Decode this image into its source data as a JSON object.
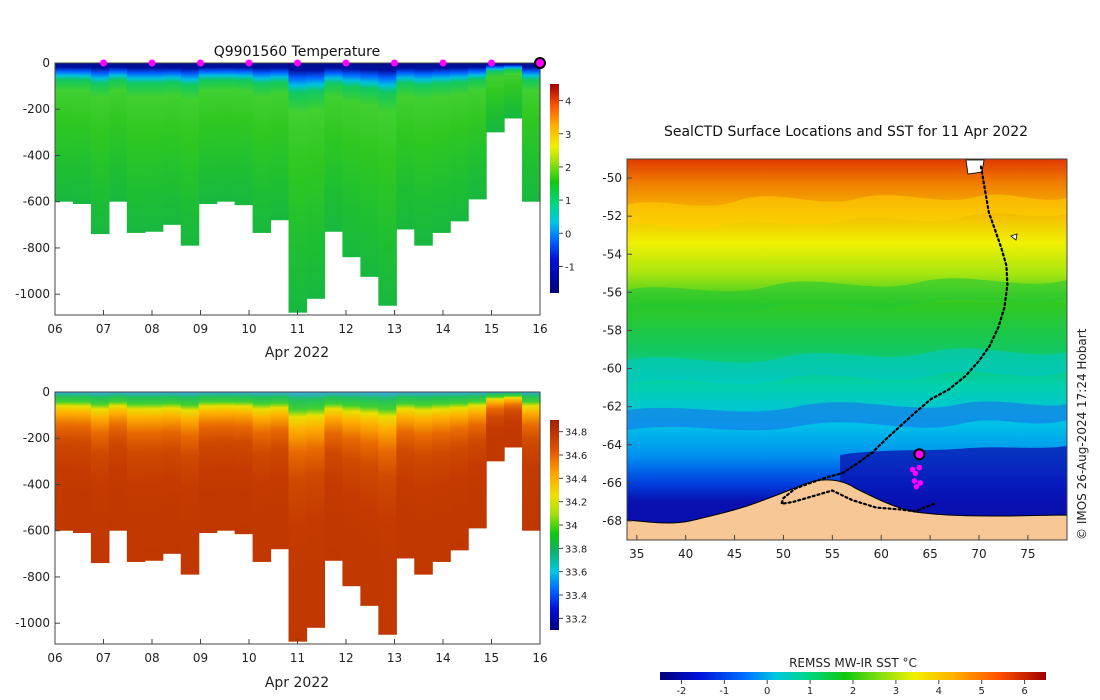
{
  "chart_data": [
    {
      "type": "heatmap",
      "title": "Q9901560  Temperature",
      "xlabel": "Apr 2022",
      "x_ticks": [
        "06",
        "07",
        "08",
        "09",
        "10",
        "11",
        "12",
        "13",
        "14",
        "15",
        "16"
      ],
      "y_ticks": [
        "0",
        "-200",
        "-400",
        "-600",
        "-800",
        "-1000"
      ],
      "xlim": [
        6,
        16
      ],
      "ylim": [
        -1090,
        0
      ],
      "colorbar": {
        "ticks": [
          "4",
          "3",
          "2",
          "1",
          "0",
          "-1"
        ],
        "range": [
          -1.8,
          4.5
        ]
      },
      "profile_markers": [
        "07",
        "08",
        "09",
        "10",
        "11",
        "12",
        "13",
        "14",
        "15"
      ],
      "latest_marker": "16",
      "marker_color": "#ff00ff",
      "profile_depths_m": [
        600,
        610,
        740,
        600,
        735,
        730,
        700,
        790,
        610,
        600,
        615,
        735,
        680,
        1080,
        1020,
        730,
        840,
        925,
        1050,
        720,
        790,
        735,
        685,
        590,
        300,
        240,
        600
      ]
    },
    {
      "type": "heatmap",
      "title": "",
      "xlabel": "Apr 2022",
      "x_ticks": [
        "06",
        "07",
        "08",
        "09",
        "10",
        "11",
        "12",
        "13",
        "14",
        "15",
        "16"
      ],
      "y_ticks": [
        "0",
        "-200",
        "-400",
        "-600",
        "-800",
        "-1000"
      ],
      "xlim": [
        6,
        16
      ],
      "ylim": [
        -1090,
        0
      ],
      "colorbar": {
        "ticks": [
          "34.8",
          "34.6",
          "34.4",
          "34.2",
          "34",
          "33.8",
          "33.6",
          "33.4",
          "33.2"
        ],
        "range": [
          33.1,
          34.9
        ]
      },
      "profile_depths_m": [
        600,
        610,
        740,
        600,
        735,
        730,
        700,
        790,
        610,
        600,
        615,
        735,
        680,
        1080,
        1020,
        730,
        840,
        925,
        1050,
        720,
        790,
        735,
        685,
        590,
        300,
        240,
        600
      ]
    },
    {
      "type": "map",
      "title": "SealCTD Surface Locations and SST for 11 Apr 2022",
      "x_ticks": [
        "35",
        "40",
        "45",
        "50",
        "55",
        "60",
        "65",
        "70",
        "75"
      ],
      "y_ticks": [
        "-50",
        "-52",
        "-54",
        "-56",
        "-58",
        "-60",
        "-62",
        "-64",
        "-66",
        "-68"
      ],
      "xlim": [
        34,
        79
      ],
      "ylim": [
        -69,
        -49
      ],
      "colorbar_label": "REMSS MW-IR SST °C",
      "colorbar_ticks": [
        "-2",
        "-1",
        "0",
        "1",
        "2",
        "3",
        "4",
        "5",
        "6"
      ],
      "colorbar_range": [
        -2.5,
        6.5
      ],
      "track": [
        [
          70.2,
          -49.4
        ],
        [
          70.6,
          -50.6
        ],
        [
          71.0,
          -51.8
        ],
        [
          71.7,
          -52.8
        ],
        [
          72.3,
          -53.7
        ],
        [
          72.8,
          -54.6
        ],
        [
          72.9,
          -55.6
        ],
        [
          72.6,
          -56.8
        ],
        [
          72.0,
          -57.8
        ],
        [
          71.1,
          -58.8
        ],
        [
          70.0,
          -59.6
        ],
        [
          68.6,
          -60.4
        ],
        [
          66.9,
          -61.1
        ],
        [
          65.1,
          -61.6
        ],
        [
          63.5,
          -62.3
        ],
        [
          62.0,
          -63.0
        ],
        [
          60.5,
          -63.7
        ],
        [
          59.1,
          -64.4
        ],
        [
          57.5,
          -65.0
        ],
        [
          56.0,
          -65.5
        ],
        [
          54.5,
          -65.7
        ],
        [
          52.8,
          -66.0
        ],
        [
          51.2,
          -66.3
        ],
        [
          50.0,
          -66.8
        ],
        [
          49.8,
          -67.1
        ],
        [
          51.0,
          -67.0
        ],
        [
          53.0,
          -66.7
        ],
        [
          55.0,
          -66.4
        ],
        [
          57.0,
          -66.9
        ],
        [
          59.5,
          -67.3
        ],
        [
          62.0,
          -67.4
        ],
        [
          63.5,
          -67.5
        ],
        [
          65.4,
          -67.1
        ]
      ],
      "profiles": [
        [
          63.2,
          -65.3
        ],
        [
          63.5,
          -65.5
        ],
        [
          63.9,
          -65.2
        ],
        [
          63.4,
          -65.9
        ],
        [
          64.0,
          -66.0
        ],
        [
          63.6,
          -66.2
        ]
      ],
      "latest_position": [
        63.9,
        -64.5
      ]
    }
  ],
  "credit": "© IMOS 26-Aug-2024 17:24 Hobart"
}
